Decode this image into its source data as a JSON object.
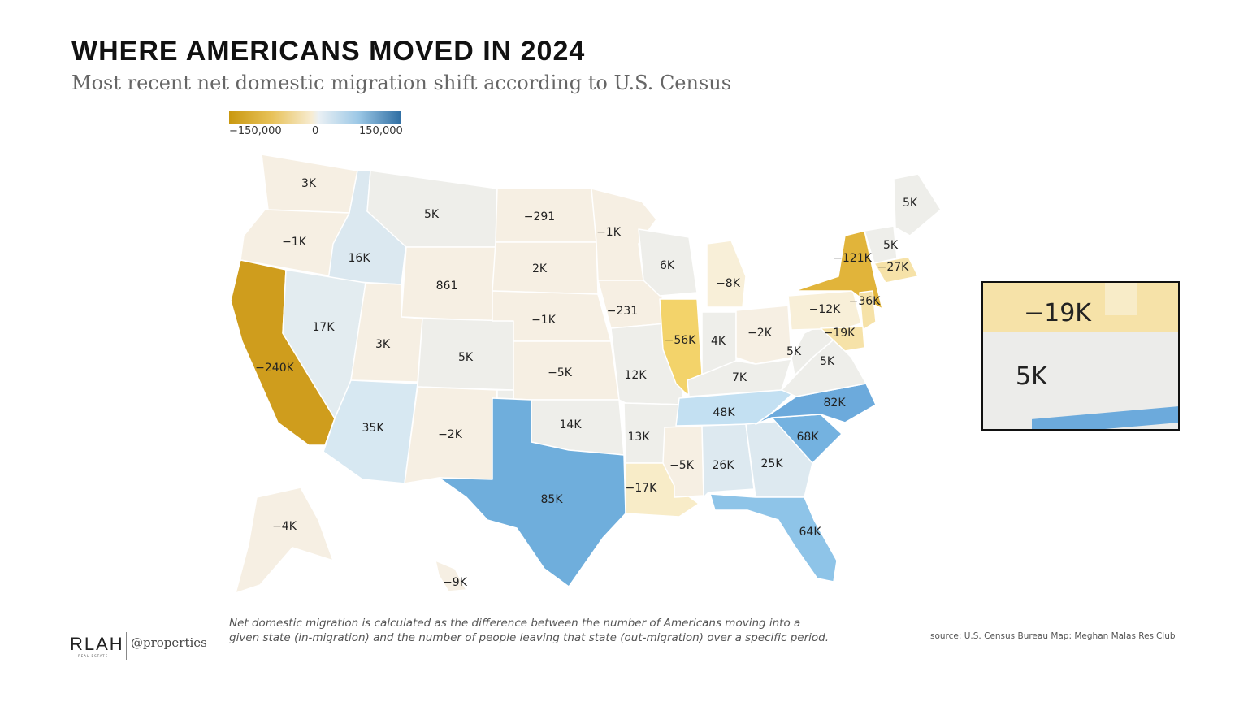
{
  "title": "WHERE AMERICANS MOVED IN 2024",
  "subtitle": "Most recent net domestic migration shift according to U.S. Census",
  "legend": {
    "min_label": "−150,000",
    "mid_label": "0",
    "max_label": "150,000",
    "colors": {
      "neg_strong": "#c9980f",
      "neutral": "#f2efe8",
      "pos_strong": "#2f6ea3"
    }
  },
  "states": [
    {
      "code": "WA",
      "value": "3K"
    },
    {
      "code": "OR",
      "value": "−1K"
    },
    {
      "code": "CA",
      "value": "−240K"
    },
    {
      "code": "ID",
      "value": "16K"
    },
    {
      "code": "NV",
      "value": "17K"
    },
    {
      "code": "MT",
      "value": "5K"
    },
    {
      "code": "WY",
      "value": "861"
    },
    {
      "code": "UT",
      "value": "3K"
    },
    {
      "code": "AZ",
      "value": "35K"
    },
    {
      "code": "CO",
      "value": "5K"
    },
    {
      "code": "NM",
      "value": "−2K"
    },
    {
      "code": "ND",
      "value": "−291"
    },
    {
      "code": "SD",
      "value": "2K"
    },
    {
      "code": "NE",
      "value": "−1K"
    },
    {
      "code": "KS",
      "value": "−5K"
    },
    {
      "code": "OK",
      "value": "14K"
    },
    {
      "code": "TX",
      "value": "85K"
    },
    {
      "code": "MN",
      "value": "−1K"
    },
    {
      "code": "IA",
      "value": "−231"
    },
    {
      "code": "MO",
      "value": "12K"
    },
    {
      "code": "AR",
      "value": "13K"
    },
    {
      "code": "LA",
      "value": "−17K"
    },
    {
      "code": "WI",
      "value": "6K"
    },
    {
      "code": "IL",
      "value": "−56K"
    },
    {
      "code": "MI",
      "value": "−8K"
    },
    {
      "code": "IN",
      "value": "4K"
    },
    {
      "code": "OH",
      "value": "−2K"
    },
    {
      "code": "KY",
      "value": "7K"
    },
    {
      "code": "TN",
      "value": "48K"
    },
    {
      "code": "MS",
      "value": "−5K"
    },
    {
      "code": "AL",
      "value": "26K"
    },
    {
      "code": "GA",
      "value": "25K"
    },
    {
      "code": "FL",
      "value": "64K"
    },
    {
      "code": "SC",
      "value": "68K"
    },
    {
      "code": "NC",
      "value": "82K"
    },
    {
      "code": "VA",
      "value": "5K"
    },
    {
      "code": "WV",
      "value": "5K"
    },
    {
      "code": "PA",
      "value": "−12K"
    },
    {
      "code": "NY",
      "value": "−121K"
    },
    {
      "code": "NJ",
      "value": "−36K"
    },
    {
      "code": "MD",
      "value": "−19K"
    },
    {
      "code": "VT",
      "value": "5K"
    },
    {
      "code": "MA",
      "value": "−27K"
    },
    {
      "code": "ME",
      "value": "5K"
    },
    {
      "code": "AK",
      "value": "−4K"
    },
    {
      "code": "HI",
      "value": "−9K"
    }
  ],
  "inset": {
    "top_value": "−19K",
    "bottom_value": "5K"
  },
  "footnote": "Net domestic migration is calculated as the difference between the number of Americans moving into a given state (in-migration) and the number of people leaving that state (out-migration) over a specific period.",
  "source": "source: U.S. Census Bureau  Map: Meghan Malas  ResiClub",
  "logos": {
    "rlah": "RLAH",
    "rlah_sub": "REAL ESTATE",
    "properties": "@properties"
  }
}
